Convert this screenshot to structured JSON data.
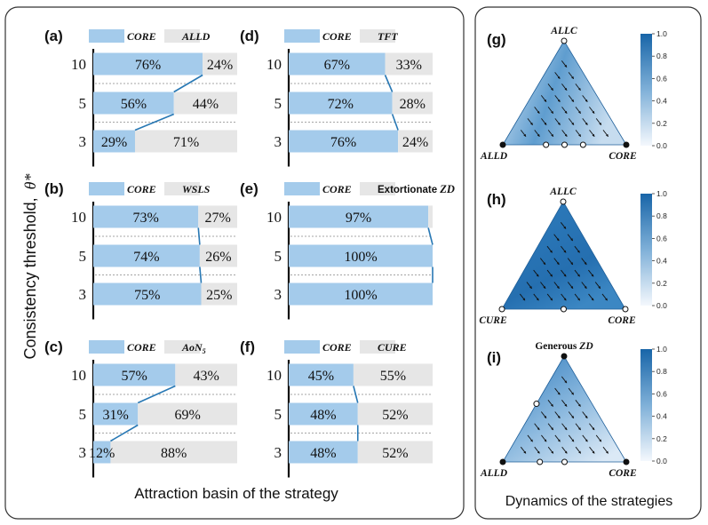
{
  "left_panel": {
    "xlabel": "Attraction basin of the strategy",
    "ylabel_text": "Consistency threshold,",
    "ylabel_symbol": "θ*"
  },
  "right_panel": {
    "xlabel": "Dynamics of the strategies"
  },
  "colors": {
    "core": "#a4cbeb",
    "other": "#e6e6e6",
    "connector": "#2878b4",
    "triangle_dark": "#1f6fb0"
  },
  "chart_data": [
    {
      "type": "bar",
      "panel": "(a)",
      "legend": [
        "CORE",
        "ALLD"
      ],
      "categories": [
        "10",
        "5",
        "3"
      ],
      "series": [
        {
          "name": "CORE",
          "values": [
            76,
            56,
            29
          ]
        },
        {
          "name": "ALLD",
          "values": [
            24,
            44,
            71
          ]
        }
      ],
      "value_labels": [
        [
          "76%",
          "24%"
        ],
        [
          "56%",
          "44%"
        ],
        [
          "29%",
          "71%"
        ]
      ],
      "xlim": [
        0,
        100
      ]
    },
    {
      "type": "bar",
      "panel": "(b)",
      "legend": [
        "CORE",
        "WSLS"
      ],
      "categories": [
        "10",
        "5",
        "3"
      ],
      "series": [
        {
          "name": "CORE",
          "values": [
            73,
            74,
            75
          ]
        },
        {
          "name": "WSLS",
          "values": [
            27,
            26,
            25
          ]
        }
      ],
      "value_labels": [
        [
          "73%",
          "27%"
        ],
        [
          "74%",
          "26%"
        ],
        [
          "75%",
          "25%"
        ]
      ],
      "xlim": [
        0,
        100
      ]
    },
    {
      "type": "bar",
      "panel": "(c)",
      "legend": [
        "CORE",
        "AoN5"
      ],
      "categories": [
        "10",
        "5",
        "3"
      ],
      "series": [
        {
          "name": "CORE",
          "values": [
            57,
            31,
            12
          ]
        },
        {
          "name": "AoN5",
          "values": [
            43,
            69,
            88
          ]
        }
      ],
      "value_labels": [
        [
          "57%",
          "43%"
        ],
        [
          "31%",
          "69%"
        ],
        [
          "12%",
          "88%"
        ]
      ],
      "xlim": [
        0,
        100
      ]
    },
    {
      "type": "bar",
      "panel": "(d)",
      "legend": [
        "CORE",
        "TFT"
      ],
      "categories": [
        "10",
        "5",
        "3"
      ],
      "series": [
        {
          "name": "CORE",
          "values": [
            67,
            72,
            76
          ]
        },
        {
          "name": "TFT",
          "values": [
            33,
            28,
            24
          ]
        }
      ],
      "value_labels": [
        [
          "67%",
          "33%"
        ],
        [
          "72%",
          "28%"
        ],
        [
          "76%",
          "24%"
        ]
      ],
      "xlim": [
        0,
        100
      ]
    },
    {
      "type": "bar",
      "panel": "(e)",
      "legend": [
        "CORE",
        "Extortionate ZD"
      ],
      "categories": [
        "10",
        "5",
        "3"
      ],
      "series": [
        {
          "name": "CORE",
          "values": [
            97,
            100,
            100
          ]
        },
        {
          "name": "Extortionate ZD",
          "values": [
            3,
            0,
            0
          ]
        }
      ],
      "value_labels": [
        [
          "97%",
          ""
        ],
        [
          "100%",
          ""
        ],
        [
          "100%",
          ""
        ]
      ],
      "xlim": [
        0,
        100
      ]
    },
    {
      "type": "bar",
      "panel": "(f)",
      "legend": [
        "CORE",
        "CURE"
      ],
      "categories": [
        "10",
        "5",
        "3"
      ],
      "series": [
        {
          "name": "CORE",
          "values": [
            45,
            48,
            48
          ]
        },
        {
          "name": "CURE",
          "values": [
            55,
            52,
            52
          ]
        }
      ],
      "value_labels": [
        [
          "45%",
          "55%"
        ],
        [
          "48%",
          "52%"
        ],
        [
          "48%",
          "52%"
        ]
      ],
      "xlim": [
        0,
        100
      ]
    },
    {
      "type": "heatmap",
      "panel": "(g)",
      "vertices": {
        "top": "ALLC",
        "left": "ALLD",
        "right": "CORE"
      },
      "colorbar": {
        "min": 0.0,
        "max": 1.0,
        "ticks": [
          "1.0",
          "0.8",
          "0.6",
          "0.4",
          "0.2",
          "0.0"
        ]
      }
    },
    {
      "type": "heatmap",
      "panel": "(h)",
      "vertices": {
        "top": "ALLC",
        "left": "CURE",
        "right": "CORE"
      },
      "colorbar": {
        "min": 0.0,
        "max": 1.0,
        "ticks": [
          "1.0",
          "0.8",
          "0.6",
          "0.4",
          "0.2",
          "0.0"
        ]
      }
    },
    {
      "type": "heatmap",
      "panel": "(i)",
      "vertices": {
        "top": "Generous ZD",
        "left": "ALLD",
        "right": "CORE"
      },
      "colorbar": {
        "min": 0.0,
        "max": 1.0,
        "ticks": [
          "1.0",
          "0.8",
          "0.6",
          "0.4",
          "0.2",
          "0.0"
        ]
      }
    }
  ]
}
